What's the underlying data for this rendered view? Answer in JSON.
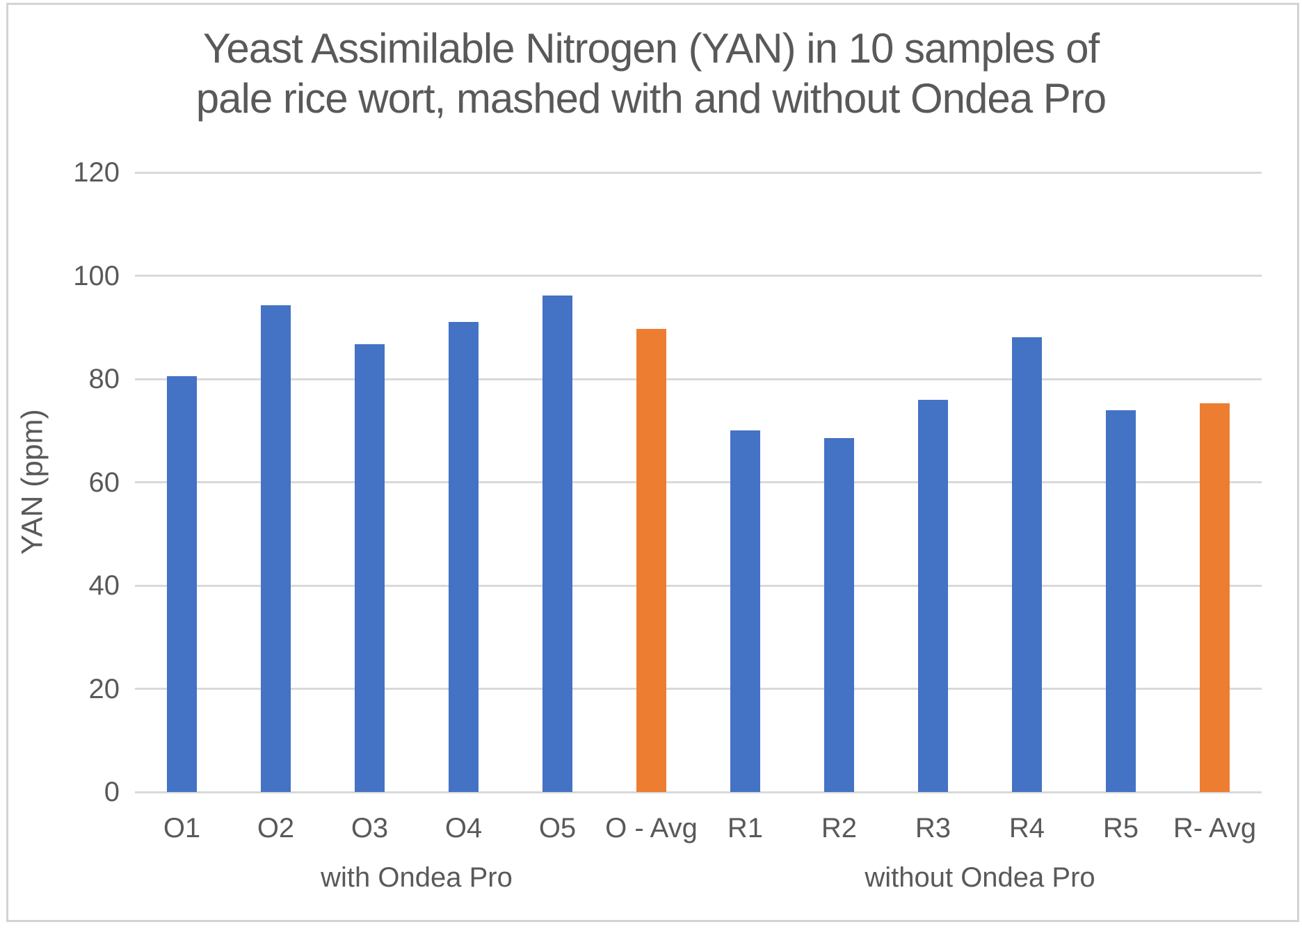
{
  "page": {
    "background": "#FFFFFF",
    "frame_border_color": "#D3D3D3"
  },
  "chart_data": {
    "type": "bar",
    "title": "Yeast Assimilable Nitrogen (YAN) in 10 samples of pale rice wort, mashed with and without Ondea Pro",
    "title_lines": [
      "Yeast Assimilable Nitrogen (YAN) in 10 samples of",
      "pale rice wort, mashed with and without Ondea Pro"
    ],
    "xlabel": "",
    "ylabel": "YAN (ppm)",
    "ylim": [
      0,
      120
    ],
    "y_ticks": [
      0,
      20,
      40,
      60,
      80,
      100,
      120
    ],
    "grid": true,
    "legend": false,
    "categories": [
      "O1",
      "O2",
      "O3",
      "O4",
      "O5",
      "O - Avg",
      "R1",
      "R2",
      "R3",
      "R4",
      "R5",
      "R- Avg"
    ],
    "values": [
      80.5,
      94.3,
      86.7,
      91.1,
      96.1,
      89.7,
      70.1,
      68.5,
      76.0,
      88.1,
      73.9,
      75.3
    ],
    "bar_colors": [
      "#4472C4",
      "#4472C4",
      "#4472C4",
      "#4472C4",
      "#4472C4",
      "#ED7D31",
      "#4472C4",
      "#4472C4",
      "#4472C4",
      "#4472C4",
      "#4472C4",
      "#ED7D31"
    ],
    "group_labels": [
      {
        "label": "with Ondea Pro",
        "span": [
          0,
          5
        ]
      },
      {
        "label": "without Ondea Pro",
        "span": [
          6,
          11
        ]
      }
    ],
    "colors": {
      "sample_bar": "#4472C4",
      "average_bar": "#ED7D31",
      "gridline": "#D9D9D9",
      "text": "#595959"
    }
  }
}
